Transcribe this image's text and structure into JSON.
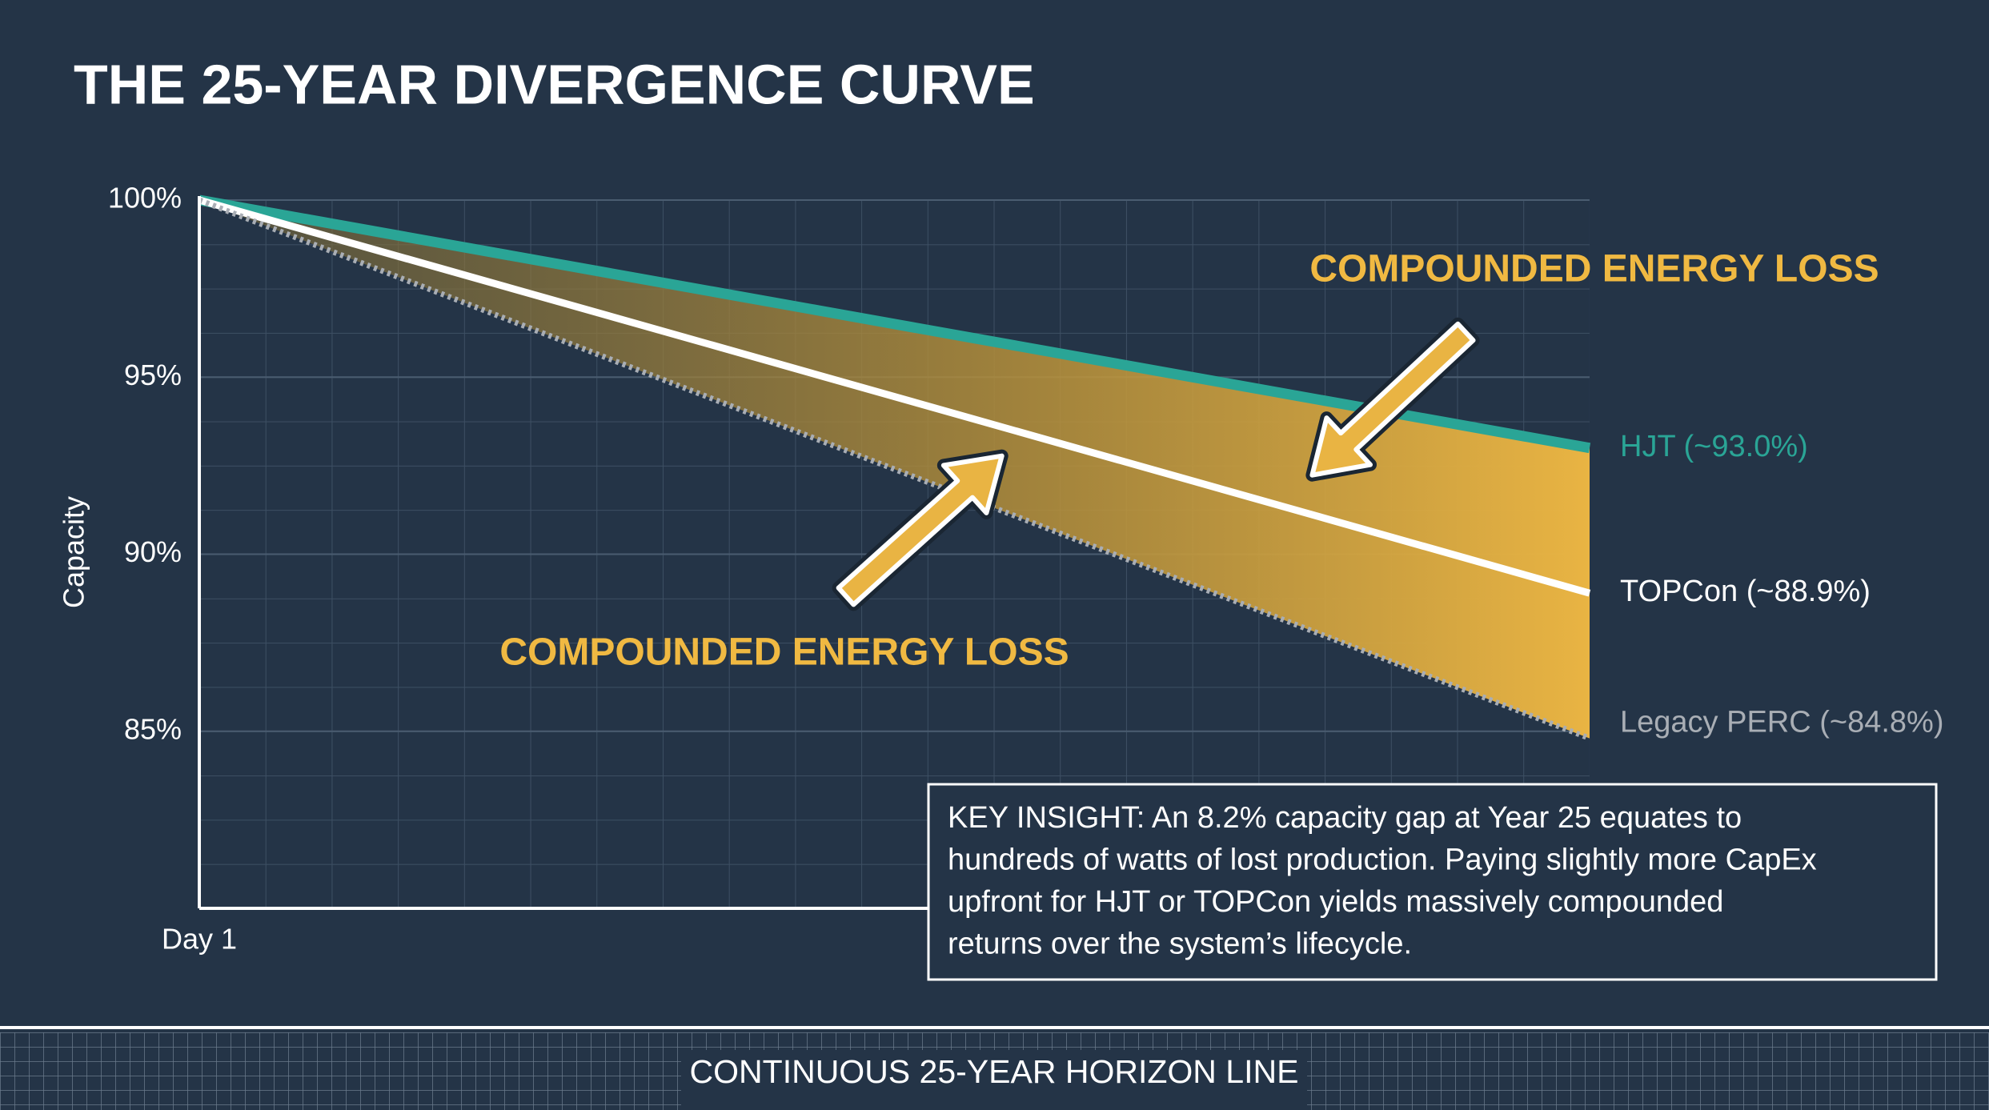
{
  "chart_data": {
    "type": "line",
    "title": "THE 25-YEAR DIVERGENCE CURVE",
    "y_label": "Capacity",
    "categories": [
      "Day 1",
      null
    ],
    "series": [
      {
        "name": "HJT (~93.0%)",
        "color": "#2aa596",
        "values": [
          100,
          93.0
        ]
      },
      {
        "name": "TOPCon (~88.9%)",
        "color": "#ffffff",
        "values": [
          100,
          88.9
        ]
      },
      {
        "name": "Legacy PERC (~84.8%)",
        "color": "#a9aeb5",
        "values": [
          100,
          84.8
        ]
      }
    ],
    "ylim": [
      80,
      100
    ],
    "yticks": [
      {
        "value": 85,
        "label": "85%"
      },
      {
        "value": 90,
        "label": "90%"
      },
      {
        "value": 95,
        "label": "95%"
      },
      {
        "value": 100,
        "label": "100%"
      }
    ],
    "grid": true,
    "annotations": [
      "COMPOUNDED ENERGY LOSS",
      "COMPOUNDED ENERGY LOSS"
    ],
    "key_insight": [
      "KEY INSIGHT: An 8.2% capacity gap at Year 25 equates to",
      "hundreds of watts of lost production. Paying slightly more CapEx",
      "upfront for HJT or TOPCon yields massively compounded",
      "returns over the system’s lifecycle."
    ],
    "footer": "CONTINUOUS 25-YEAR HORIZON LINE"
  }
}
